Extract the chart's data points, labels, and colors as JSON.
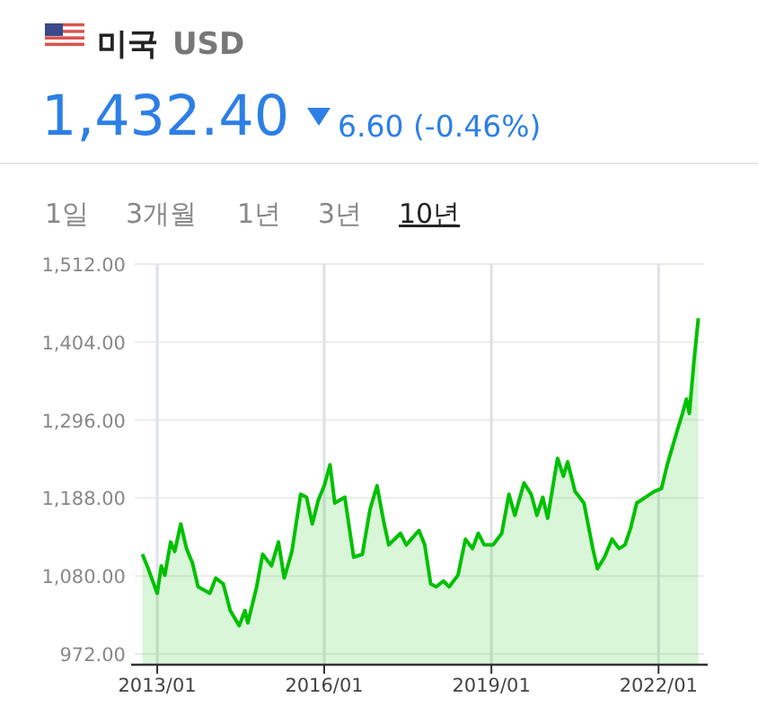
{
  "chart_data": {
    "type": "area",
    "title": "미국",
    "subtitle": "USD",
    "annotations": [
      "1,432.40",
      "6.60 (-0.46%)",
      "1일",
      "3개월",
      "1년",
      "3년",
      "10년"
    ],
    "x": [
      "2012-09-26",
      "2012-11-03",
      "2013-01-01",
      "2013-01-28",
      "2013-02-20",
      "2013-03-30",
      "2013-04-26",
      "2013-06-04",
      "2013-07-12",
      "2013-08-20",
      "2013-09-26",
      "2013-12-12",
      "2014-01-20",
      "2014-03-10",
      "2014-04-25",
      "2014-06-22",
      "2014-07-30",
      "2014-08-18",
      "2014-10-15",
      "2014-11-23",
      "2015-01-20",
      "2015-03-07",
      "2015-04-14",
      "2015-06-03",
      "2015-07-30",
      "2015-09-07",
      "2015-10-15",
      "2015-11-23",
      "2016-01-01",
      "2016-02-08",
      "2016-03-10",
      "2016-05-15",
      "2016-07-12",
      "2016-09-07",
      "2016-10-27",
      "2016-12-12",
      "2017-01-28",
      "2017-02-27",
      "2017-05-15",
      "2017-06-22",
      "2017-09-13",
      "2017-10-21",
      "2017-11-29",
      "2018-01-05",
      "2018-02-20",
      "2018-03-30",
      "2018-05-27",
      "2018-07-15",
      "2018-08-30",
      "2018-10-07",
      "2018-11-15",
      "2019-01-12",
      "2019-03-10",
      "2019-04-26",
      "2019-06-04",
      "2019-08-03",
      "2019-09-19",
      "2019-10-27",
      "2019-12-04",
      "2020-01-05",
      "2020-02-12",
      "2020-03-10",
      "2020-04-17",
      "2020-05-15",
      "2020-07-03",
      "2020-08-30",
      "2020-10-27",
      "2020-11-26",
      "2021-01-12",
      "2021-03-02",
      "2021-04-17",
      "2021-05-26",
      "2021-07-03",
      "2021-08-11",
      "2021-10-07",
      "2021-12-04",
      "2022-01-20",
      "2022-02-27",
      "2022-05-07",
      "2022-06-07",
      "2022-07-03",
      "2022-07-22",
      "2022-08-22",
      "2022-09-19"
    ],
    "values": [
      1110,
      1090,
      1056,
      1094,
      1081,
      1127,
      1114,
      1152,
      1118,
      1098,
      1065,
      1056,
      1077,
      1069,
      1032,
      1011,
      1032,
      1015,
      1065,
      1110,
      1094,
      1127,
      1077,
      1114,
      1193,
      1189,
      1152,
      1185,
      1205,
      1234,
      1181,
      1189,
      1106,
      1110,
      1172,
      1205,
      1152,
      1123,
      1139,
      1123,
      1143,
      1123,
      1069,
      1065,
      1073,
      1065,
      1081,
      1131,
      1118,
      1139,
      1123,
      1123,
      1139,
      1193,
      1164,
      1209,
      1193,
      1164,
      1189,
      1160,
      1209,
      1243,
      1218,
      1238,
      1197,
      1181,
      1118,
      1090,
      1106,
      1131,
      1118,
      1123,
      1147,
      1181,
      1189,
      1197,
      1201,
      1234,
      1284,
      1305,
      1325,
      1305,
      1379,
      1437
    ],
    "color": "#00c000",
    "xlim": [
      "2012-08-30",
      "2022-10-15"
    ],
    "xticks": [
      {
        "value": "2013-01",
        "label": "2013/01"
      },
      {
        "value": "2016-01",
        "label": "2016/01"
      },
      {
        "value": "2019-01",
        "label": "2019/01"
      },
      {
        "value": "2022-01",
        "label": "2022/01"
      }
    ],
    "ylim": [
      957,
      1512
    ],
    "yticks": [
      {
        "value": 972,
        "label": "972.00"
      },
      {
        "value": 1080,
        "label": "1,080.00"
      },
      {
        "value": 1188,
        "label": "1,188.00"
      },
      {
        "value": 1296,
        "label": "1,296.00"
      },
      {
        "value": 1404,
        "label": "1,404.00"
      },
      {
        "value": 1512,
        "label": "1,512.00"
      }
    ],
    "grid": true
  }
}
